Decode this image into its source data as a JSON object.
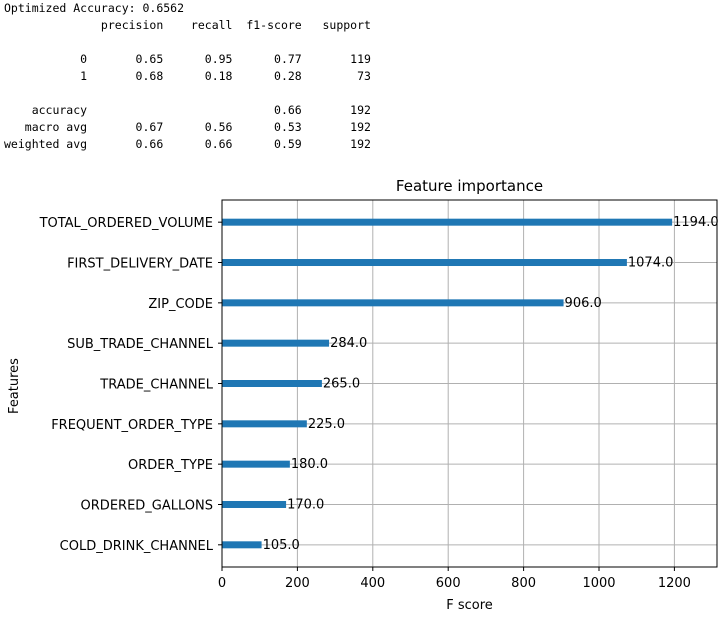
{
  "report": {
    "accuracy_line": "Optimized Accuracy: 0.6562",
    "header": [
      "precision",
      "recall",
      "f1-score",
      "support"
    ],
    "rows": [
      {
        "label": "0",
        "precision": "0.65",
        "recall": "0.95",
        "f1": "0.77",
        "support": "119"
      },
      {
        "label": "1",
        "precision": "0.68",
        "recall": "0.18",
        "f1": "0.28",
        "support": "73"
      },
      {
        "label": "accuracy",
        "precision": "",
        "recall": "",
        "f1": "0.66",
        "support": "192"
      },
      {
        "label": "macro avg",
        "precision": "0.67",
        "recall": "0.56",
        "f1": "0.53",
        "support": "192"
      },
      {
        "label": "weighted avg",
        "precision": "0.66",
        "recall": "0.66",
        "f1": "0.59",
        "support": "192"
      }
    ]
  },
  "chart_data": {
    "type": "bar",
    "orientation": "horizontal",
    "title": "Feature importance",
    "xlabel": "F score",
    "ylabel": "Features",
    "categories": [
      "TOTAL_ORDERED_VOLUME",
      "FIRST_DELIVERY_DATE",
      "ZIP_CODE",
      "SUB_TRADE_CHANNEL",
      "TRADE_CHANNEL",
      "FREQUENT_ORDER_TYPE",
      "ORDER_TYPE",
      "ORDERED_GALLONS",
      "COLD_DRINK_CHANNEL"
    ],
    "values": [
      1194,
      1074,
      906,
      284,
      265,
      225,
      180,
      170,
      105
    ],
    "value_labels": [
      "1194.0",
      "1074.0",
      "906.0",
      "284.0",
      "265.0",
      "225.0",
      "180.0",
      "170.0",
      "105.0"
    ],
    "xlim": [
      0,
      1313
    ],
    "xticks": [
      0,
      200,
      400,
      600,
      800,
      1000,
      1200
    ],
    "grid": true,
    "color": "#1f77b4"
  }
}
